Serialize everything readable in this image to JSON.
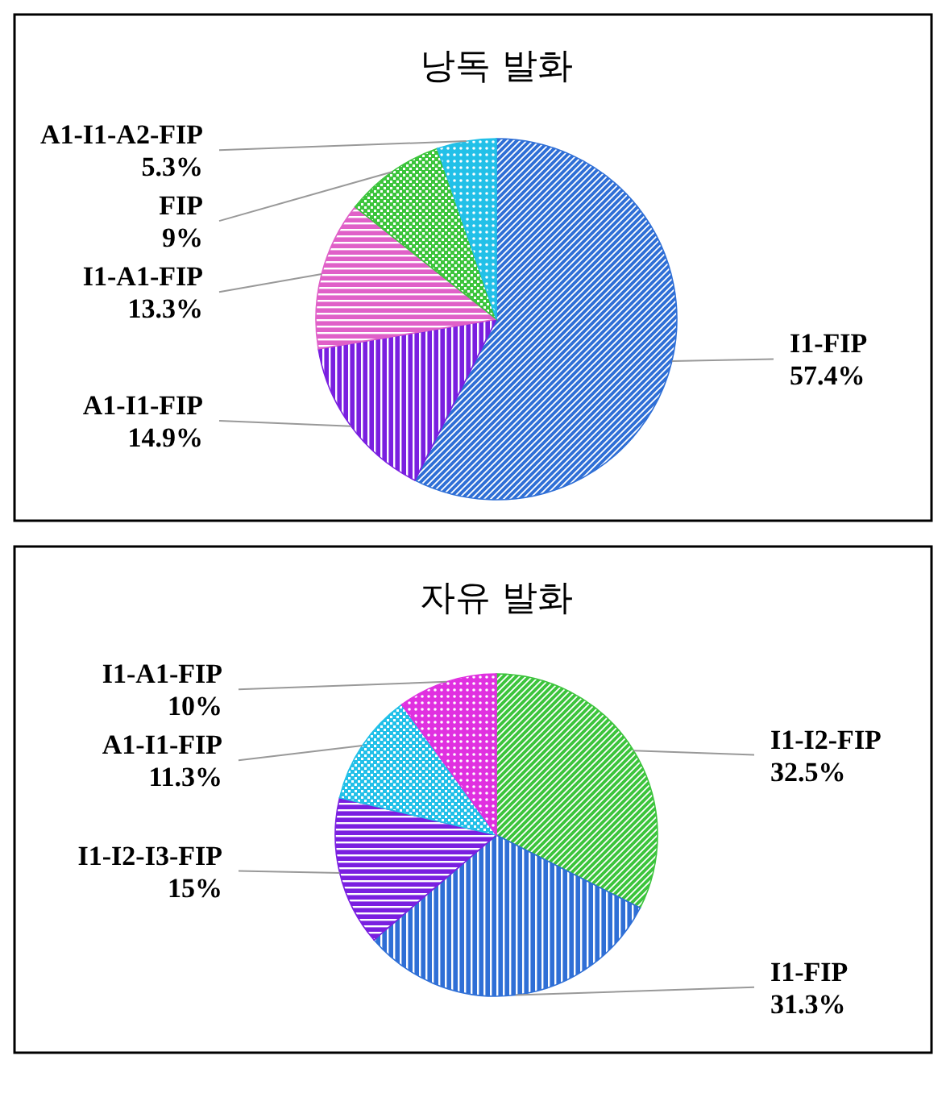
{
  "chart_data": [
    {
      "type": "pie",
      "title": "낭독 발화",
      "categories": [
        "I1-FIP",
        "A1-I1-FIP",
        "I1-A1-FIP",
        "FIP",
        "A1-I1-A2-FIP"
      ],
      "values": [
        57.4,
        14.9,
        13.3,
        9,
        5.3
      ],
      "colors": [
        "#2f6fd6",
        "#7a1fe0",
        "#e060c8",
        "#3cc43c",
        "#22c0e8"
      ],
      "value_labels": [
        "57.4%",
        "14.9%",
        "13.3%",
        "9%",
        "5.3%"
      ],
      "legend": false
    },
    {
      "type": "pie",
      "title": "자유 발화",
      "categories": [
        "I1-I2-FIP",
        "I1-FIP",
        "I1-I2-I3-FIP",
        "A1-I1-FIP",
        "I1-A1-FIP"
      ],
      "values": [
        32.5,
        31.3,
        15,
        11.3,
        10
      ],
      "colors": [
        "#3cc43c",
        "#2f6fd6",
        "#7a1fe0",
        "#22c0e8",
        "#e030e0"
      ],
      "value_labels": [
        "32.5%",
        "31.3%",
        "15%",
        "11.3%",
        "10%"
      ],
      "legend": false
    }
  ]
}
